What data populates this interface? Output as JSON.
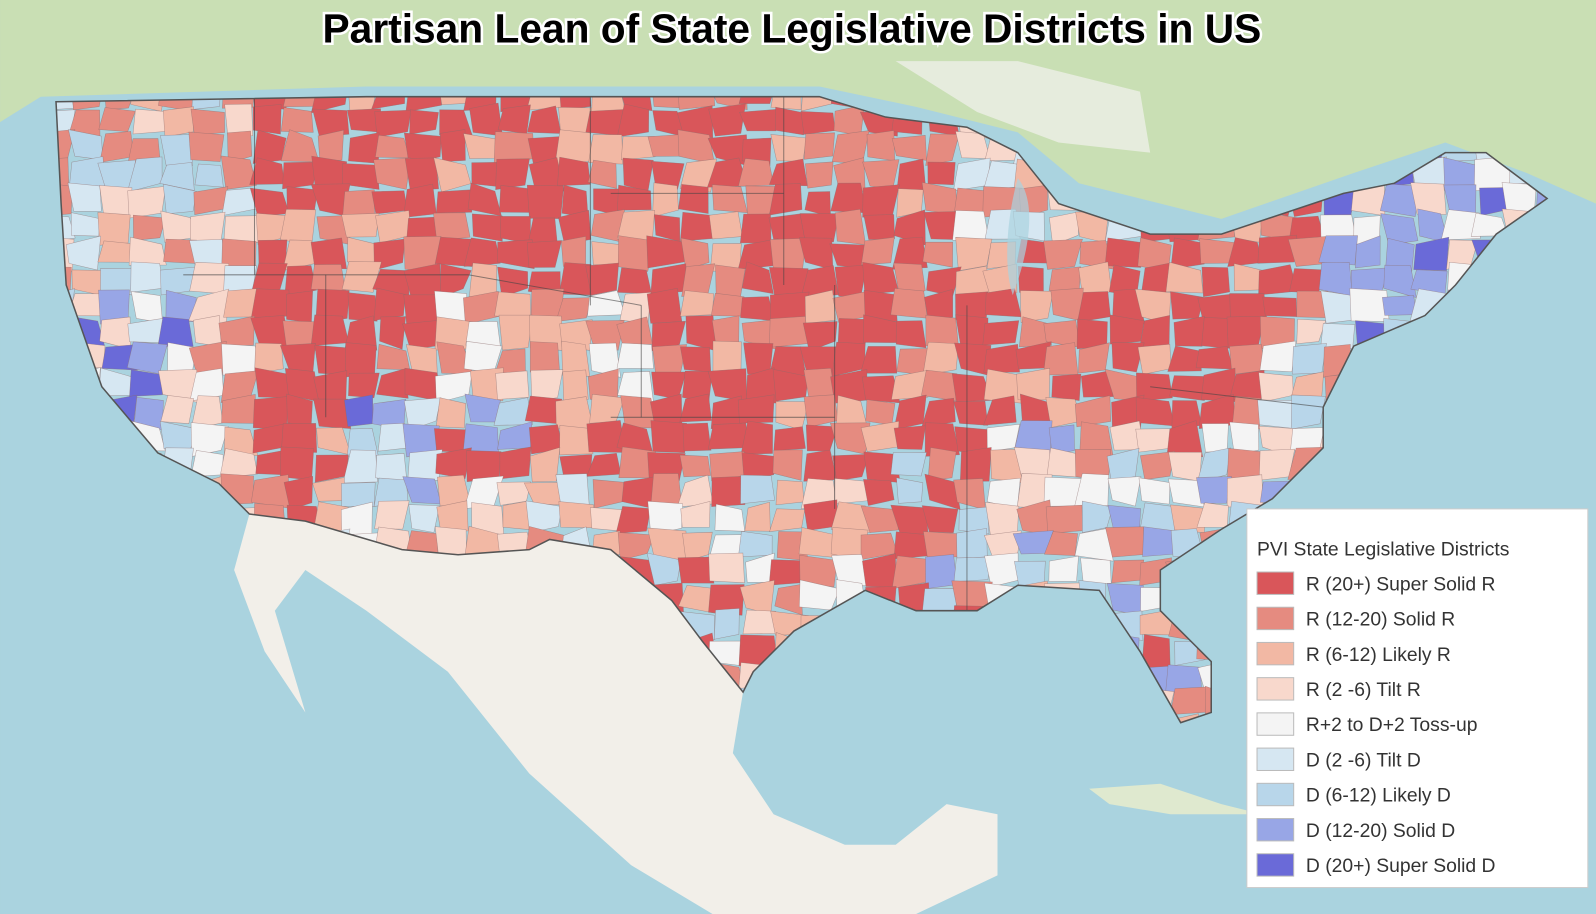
{
  "title": "Partisan Lean of State Legislative Districts in US",
  "legend": {
    "title": "PVI State Legislative Districts",
    "items": [
      {
        "label": "R (20+) Super Solid R",
        "color": "#d9565a"
      },
      {
        "label": "R (12-20) Solid R",
        "color": "#e58b80"
      },
      {
        "label": "R (6-12) Likely R",
        "color": "#f2b8a4"
      },
      {
        "label": "R (2 -6) Tilt R",
        "color": "#f8d8cc"
      },
      {
        "label": "R+2 to D+2 Toss-up",
        "color": "#f4f4f4"
      },
      {
        "label": "D (2 -6) Tilt D",
        "color": "#d6e7f2"
      },
      {
        "label": "D (6-12) Likely D",
        "color": "#b8d6ea"
      },
      {
        "label": "D (12-20) Solid D",
        "color": "#98a6e6"
      },
      {
        "label": "D (20+) Super Solid D",
        "color": "#6a6ad8"
      }
    ]
  }
}
